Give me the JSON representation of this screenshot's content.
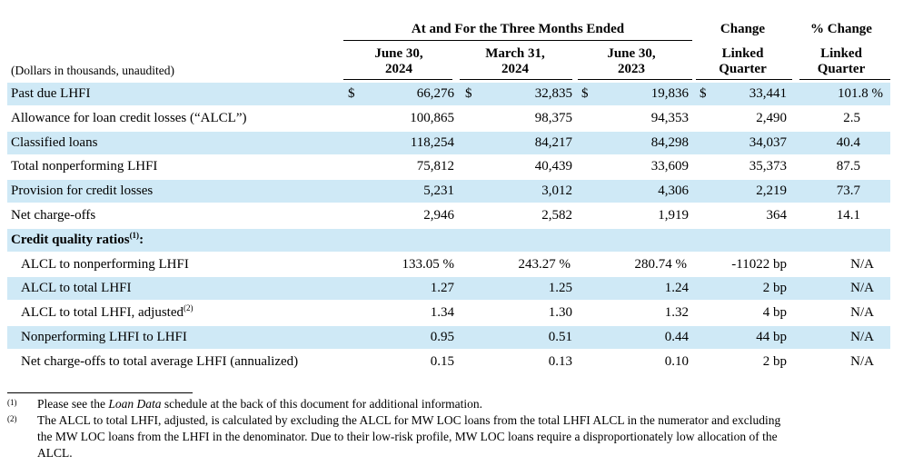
{
  "header": {
    "group_title": "At and For the Three Months Ended",
    "change_title": "Change",
    "pct_change_title": "% Change",
    "units_note": "(Dollars in thousands, unaudited)",
    "columns": [
      {
        "line1": "June 30,",
        "line2": "2024"
      },
      {
        "line1": "March 31,",
        "line2": "2024"
      },
      {
        "line1": "June 30,",
        "line2": "2023"
      },
      {
        "line1": "Linked",
        "line2": "Quarter"
      },
      {
        "line1": "Linked",
        "line2": "Quarter"
      }
    ]
  },
  "rows": [
    {
      "label": "Past due LHFI",
      "sup": "",
      "dollar": "$",
      "values": [
        "66,276",
        "32,835",
        "19,836",
        "33,441",
        "101.8 %"
      ]
    },
    {
      "label": "Allowance for loan credit losses (“ALCL”)",
      "sup": "",
      "dollar": "",
      "values": [
        "100,865",
        "98,375",
        "94,353",
        "2,490",
        "2.5"
      ]
    },
    {
      "label": "Classified loans",
      "sup": "",
      "dollar": "",
      "values": [
        "118,254",
        "84,217",
        "84,298",
        "34,037",
        "40.4"
      ]
    },
    {
      "label": "Total nonperforming LHFI",
      "sup": "",
      "dollar": "",
      "values": [
        "75,812",
        "40,439",
        "33,609",
        "35,373",
        "87.5"
      ]
    },
    {
      "label": "Provision for credit losses",
      "sup": "",
      "dollar": "",
      "values": [
        "5,231",
        "3,012",
        "4,306",
        "2,219",
        "73.7"
      ]
    },
    {
      "label": "Net charge-offs",
      "sup": "",
      "dollar": "",
      "values": [
        "2,946",
        "2,582",
        "1,919",
        "364",
        "14.1"
      ]
    },
    {
      "label": "Credit quality ratios",
      "sup": "(1)",
      "suffix": ":",
      "section": true,
      "values": [
        "",
        "",
        "",
        "",
        ""
      ]
    },
    {
      "label": "ALCL to nonperforming LHFI",
      "sup": "",
      "indent": true,
      "values": [
        "133.05 %",
        "243.27 %",
        "280.74 %",
        "-11022 bp",
        "N/A"
      ]
    },
    {
      "label": "ALCL to total LHFI",
      "sup": "",
      "indent": true,
      "values": [
        "1.27",
        "1.25",
        "1.24",
        "2 bp",
        "N/A"
      ]
    },
    {
      "label": "ALCL to total LHFI, adjusted",
      "sup": "(2)",
      "indent": true,
      "values": [
        "1.34",
        "1.30",
        "1.32",
        "4 bp",
        "N/A"
      ]
    },
    {
      "label": "Nonperforming LHFI to LHFI",
      "sup": "",
      "indent": true,
      "values": [
        "0.95",
        "0.51",
        "0.44",
        "44 bp",
        "N/A"
      ]
    },
    {
      "label": "Net charge-offs to total average LHFI (annualized)",
      "sup": "",
      "indent": true,
      "values": [
        "0.15",
        "0.13",
        "0.10",
        "2 bp",
        "N/A"
      ]
    }
  ],
  "footnotes": [
    {
      "mark": "(1)",
      "pre": "Please see the ",
      "italic": "Loan Data",
      "post": " schedule at the back of this document for additional information."
    },
    {
      "mark": "(2)",
      "lines": [
        "The ALCL to total LHFI, adjusted, is calculated by excluding the ALCL for MW LOC loans from the total LHFI ALCL in the numerator and excluding",
        "the MW LOC loans from the LHFI in the denominator. Due to their low-risk profile, MW LOC loans require a disproportionately low allocation of the",
        "ALCL."
      ]
    }
  ]
}
